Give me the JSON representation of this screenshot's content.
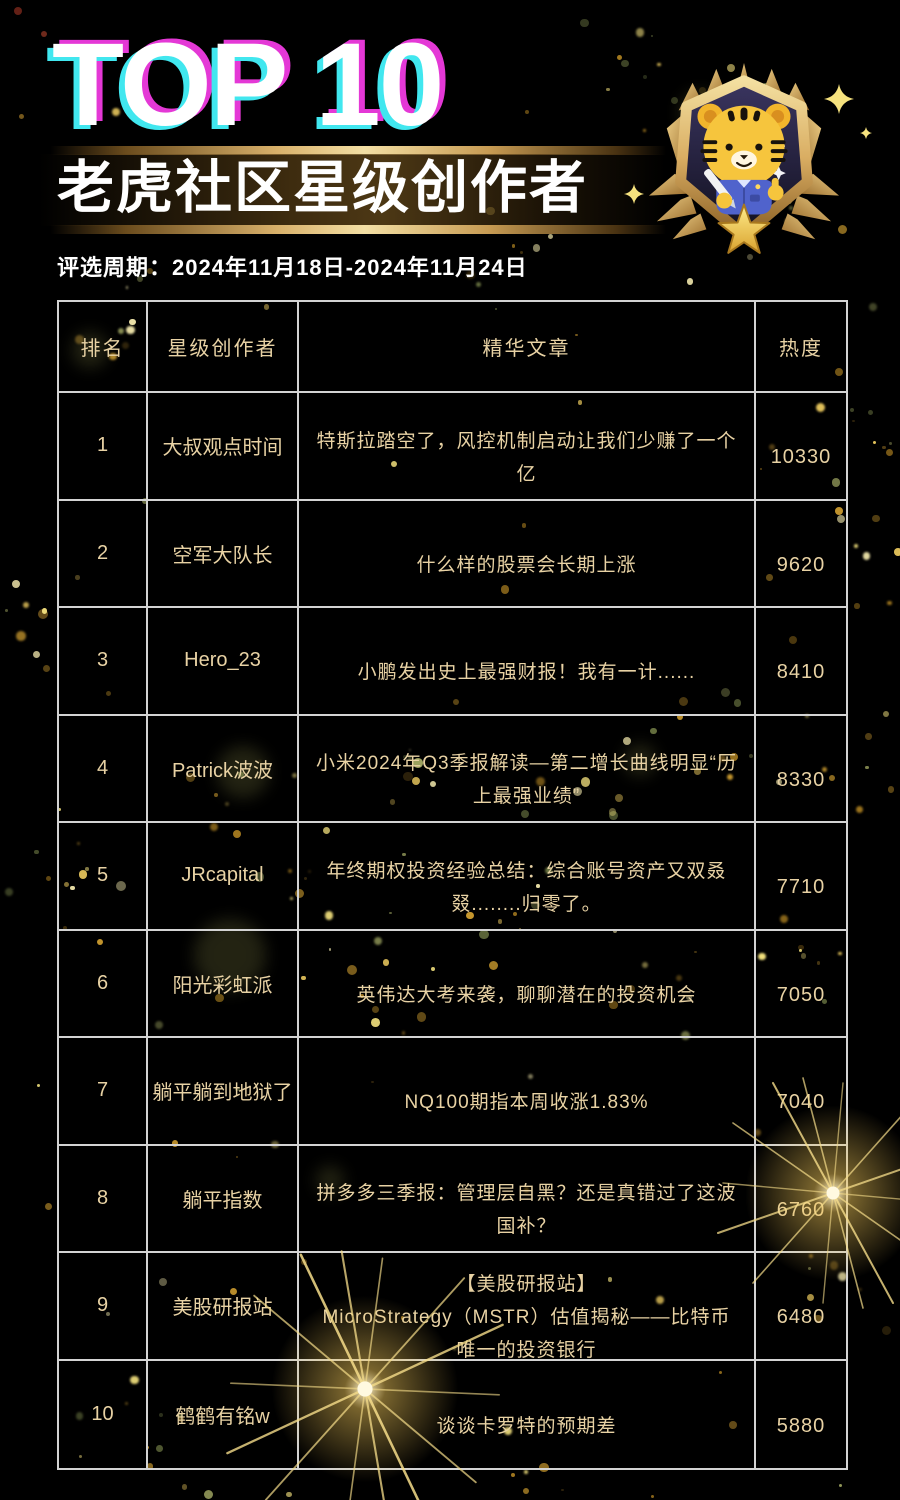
{
  "header": {
    "title": "TOP 10",
    "subtitle": "老虎社区星级创作者",
    "period": "评选周期：2024年11月18日-2024年11月24日"
  },
  "table": {
    "columns": [
      "排名",
      "星级创作者",
      "精华文章",
      "热度"
    ],
    "rows": [
      {
        "rank": "1",
        "creator": "大叔观点时间",
        "article": "特斯拉踏空了，风控机制启动让我们少赚了一个亿",
        "heat": "10330"
      },
      {
        "rank": "2",
        "creator": "空军大队长",
        "article": "什么样的股票会长期上涨",
        "heat": "9620"
      },
      {
        "rank": "3",
        "creator": "Hero_23",
        "article": "小鹏发出史上最强财报！我有一计......",
        "heat": "8410"
      },
      {
        "rank": "4",
        "creator": "Patrick波波",
        "article": "小米2024年Q3季报解读—第二增长曲线明显“历上最强业绩”",
        "heat": "8330"
      },
      {
        "rank": "5",
        "creator": "JRcapital",
        "article": "年终期权投资经验总结：综合账号资产又双叒叕........归零了。",
        "heat": "7710"
      },
      {
        "rank": "6",
        "creator": "阳光彩虹派",
        "article": "英伟达大考来袭，聊聊潜在的投资机会",
        "heat": "7050"
      },
      {
        "rank": "7",
        "creator": "躺平躺到地狱了",
        "article": "NQ100期指本周收涨1.83%",
        "heat": "7040"
      },
      {
        "rank": "8",
        "creator": "躺平指数",
        "article": "拼多多三季报：管理层自黑？还是真错过了这波国补？",
        "heat": "6760"
      },
      {
        "rank": "9",
        "creator": "美股研报站",
        "article": "【美股研报站】",
        "article_line2": "MicroStrategy（MSTR）估值揭秘——比特币唯一的投资银行",
        "heat": "6480"
      },
      {
        "rank": "10",
        "creator": "鹤鹤有铭w",
        "article": "谈谈卡罗特的预期差",
        "heat": "5880"
      }
    ]
  },
  "colors": {
    "background": "#000000",
    "table_border": "#d3d3d3",
    "table_text": "#e8d2a4",
    "title_text": "#ffffff",
    "glitch_cyan": "#41e7ef",
    "glitch_magenta": "#e438d6",
    "gold_accent": "#e9c87c"
  },
  "icons": {
    "badge": "tiger-star-badge",
    "flare": "gold-starburst",
    "sparkle": "four-point-star"
  }
}
